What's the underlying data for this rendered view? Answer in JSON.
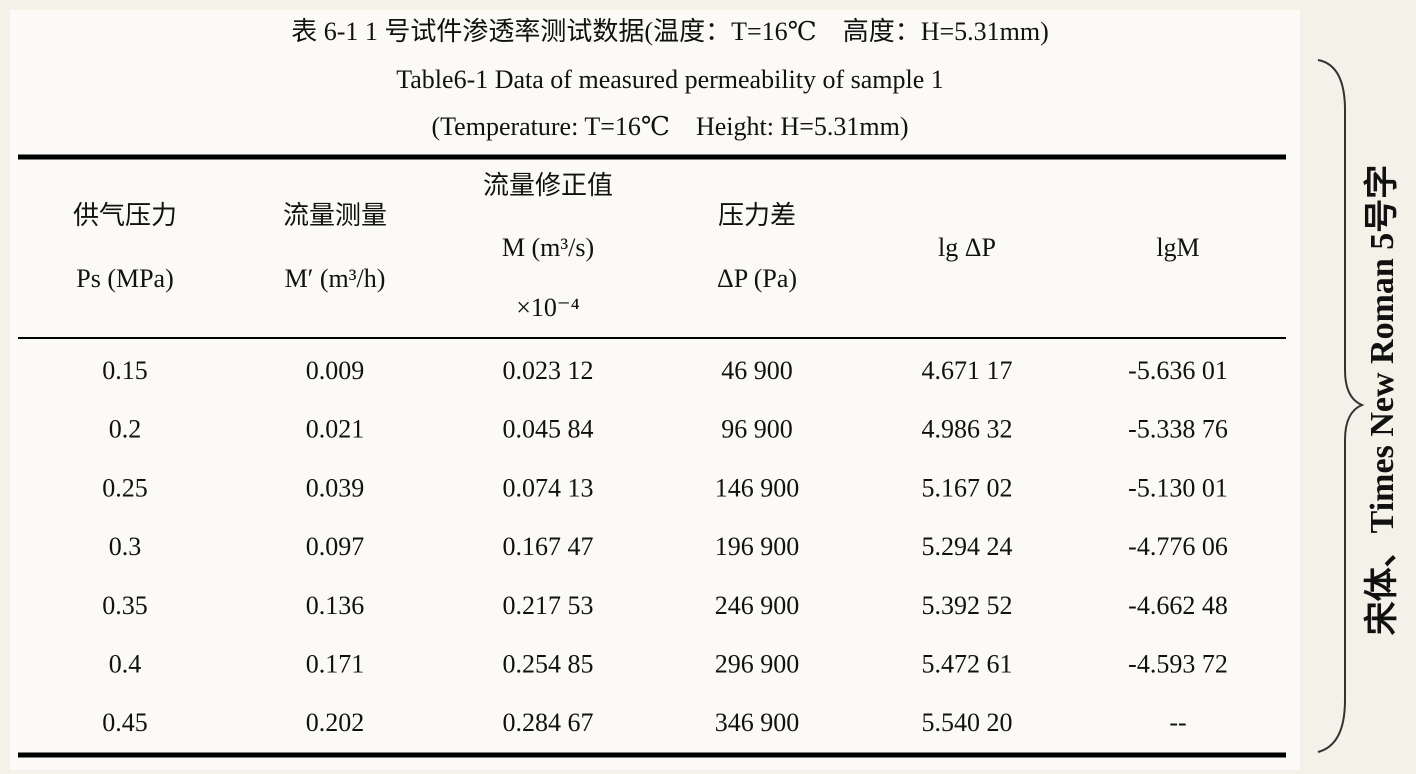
{
  "caption": {
    "zh": "表 6-1 1 号试件渗透率测试数据(温度：T=16℃　高度：H=5.31mm)",
    "en": "Table6-1 Data of measured permeability of sample 1",
    "en_sub": "(Temperature: T=16℃　Height: H=5.31mm)"
  },
  "table": {
    "header": [
      [
        "供气压力",
        "Ps (MPa)"
      ],
      [
        "流量测量",
        "M′ (m³/h)"
      ],
      [
        "流量修正值",
        "M (m³/s)",
        "×10⁻⁴"
      ],
      [
        "压力差",
        "ΔP (Pa)"
      ],
      [
        "lg ΔP"
      ],
      [
        "lgM"
      ]
    ],
    "rows": [
      [
        "0.15",
        "0.009",
        "0.023 12",
        "46 900",
        "4.671 17",
        "-5.636 01"
      ],
      [
        "0.2",
        "0.021",
        "0.045 84",
        "96 900",
        "4.986 32",
        "-5.338 76"
      ],
      [
        "0.25",
        "0.039",
        "0.074 13",
        "146 900",
        "5.167 02",
        "-5.130 01"
      ],
      [
        "0.3",
        "0.097",
        "0.167 47",
        "196 900",
        "5.294 24",
        "-4.776 06"
      ],
      [
        "0.35",
        "0.136",
        "0.217 53",
        "246 900",
        "5.392 52",
        "-4.662 48"
      ],
      [
        "0.4",
        "0.171",
        "0.254 85",
        "296 900",
        "5.472 61",
        "-4.593 72"
      ],
      [
        "0.45",
        "0.202",
        "0.284 67",
        "346 900",
        "5.540 20",
        "--"
      ]
    ]
  },
  "note": "宋体、Times New Roman 5号字"
}
